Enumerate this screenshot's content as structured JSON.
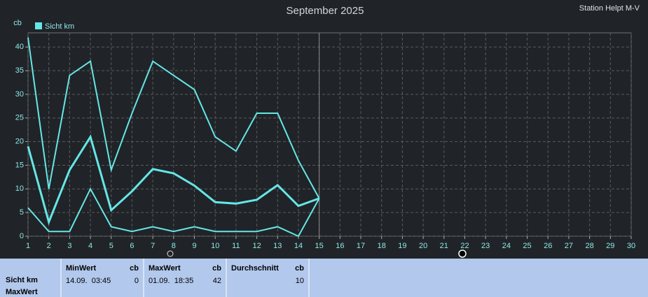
{
  "chart_data": {
    "type": "line",
    "title": "September 2025",
    "station": "Station Helpt M-V",
    "ylabel": "cb",
    "x": [
      1,
      2,
      3,
      4,
      5,
      6,
      7,
      8,
      9,
      10,
      11,
      12,
      13,
      14,
      15
    ],
    "series": [
      {
        "name": "Sicht km",
        "color": "#66e6e6",
        "values": [
          42,
          10,
          34,
          37,
          14,
          26,
          37,
          34,
          31,
          21,
          18,
          26,
          26,
          16,
          8
        ]
      },
      {
        "color": "#66e6e6",
        "values": [
          19,
          3,
          14,
          21,
          5.5,
          9.5,
          14.2,
          13.3,
          10.7,
          7.2,
          6.9,
          7.7,
          10.8,
          6.4,
          8
        ]
      },
      {
        "color": "#66e6e6",
        "values": [
          6,
          1,
          1,
          10,
          2,
          1,
          2,
          1,
          2,
          1,
          1,
          1,
          2,
          0,
          8
        ]
      }
    ],
    "xlim": [
      1,
      30
    ],
    "xticks": [
      1,
      2,
      3,
      4,
      5,
      6,
      7,
      8,
      9,
      10,
      11,
      12,
      13,
      14,
      15,
      16,
      17,
      18,
      19,
      20,
      21,
      22,
      23,
      24,
      25,
      26,
      27,
      28,
      29,
      30
    ],
    "ylim": [
      0,
      43
    ],
    "yticks": [
      0,
      5,
      10,
      15,
      20,
      25,
      30,
      35,
      40
    ],
    "grid": true
  },
  "stats": {
    "row_labels": [
      "Sicht km",
      "MaxWert"
    ],
    "columns": [
      {
        "header": "MinWert",
        "unit": "cb",
        "time": "14.09.  03:45",
        "value": 0
      },
      {
        "header": "MaxWert",
        "unit": "cb",
        "time": "01.09.  18:35",
        "value": 42
      },
      {
        "header": "Durchschnitt",
        "unit": "cb",
        "value": 10
      }
    ]
  }
}
